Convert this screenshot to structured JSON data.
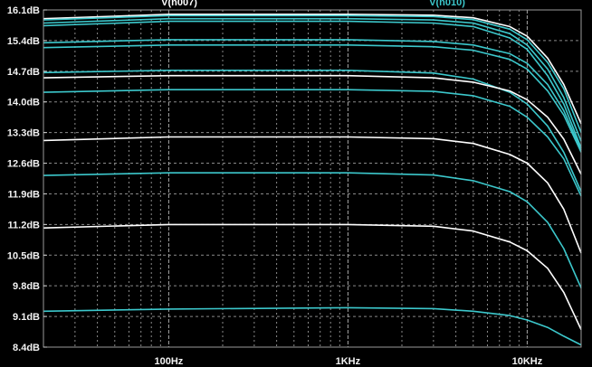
{
  "chart_data": {
    "type": "line",
    "title": "",
    "xlabel": "",
    "ylabel": "",
    "x_scale": "log",
    "xlim": [
      20,
      20000
    ],
    "ylim": [
      8.4,
      16.1
    ],
    "grid": true,
    "legend": [
      "V(n007)",
      "V(n010)"
    ],
    "y_ticks": [
      "16.1dB",
      "15.4dB",
      "14.7dB",
      "14.0dB",
      "13.3dB",
      "12.6dB",
      "11.9dB",
      "11.2dB",
      "10.5dB",
      "9.8dB",
      "9.1dB",
      "8.4dB"
    ],
    "x_ticks": [
      {
        "value": 100,
        "label": "100Hz"
      },
      {
        "value": 1000,
        "label": "1KHz"
      },
      {
        "value": 10000,
        "label": "10KHz"
      }
    ],
    "colors": {
      "background": "#000000",
      "grid": "#8a8a8a",
      "text": "#f2f2f2",
      "white_series": "#ffffff",
      "cyan_series": "#3cc8cc"
    },
    "series": [
      {
        "name": "V(n007)",
        "color": "#ffffff",
        "x": [
          20,
          100,
          1000,
          3000,
          5000,
          8000,
          10000,
          13000,
          16000,
          20000
        ],
        "y": [
          15.9,
          16.0,
          16.0,
          15.98,
          15.92,
          15.72,
          15.5,
          15.0,
          14.4,
          13.5
        ]
      },
      {
        "name": "",
        "color": "#3cc8cc",
        "x": [
          20,
          100,
          1000,
          3000,
          5000,
          8000,
          10000,
          13000,
          16000,
          20000
        ],
        "y": [
          15.87,
          15.97,
          15.97,
          15.95,
          15.88,
          15.66,
          15.42,
          14.9,
          14.3,
          13.3
        ]
      },
      {
        "name": "",
        "color": "#3cc8cc",
        "x": [
          20,
          100,
          1000,
          3000,
          5000,
          8000,
          10000,
          13000,
          16000,
          20000
        ],
        "y": [
          15.8,
          15.9,
          15.9,
          15.87,
          15.8,
          15.56,
          15.3,
          14.75,
          14.1,
          13.1
        ]
      },
      {
        "name": "",
        "color": "#3cc8cc",
        "x": [
          20,
          100,
          1000,
          3000,
          5000,
          8000,
          10000,
          13000,
          16000,
          20000
        ],
        "y": [
          15.74,
          15.84,
          15.84,
          15.8,
          15.72,
          15.46,
          15.2,
          14.6,
          13.95,
          12.95
        ]
      },
      {
        "name": "",
        "color": "#3cc8cc",
        "x": [
          20,
          100,
          1000,
          3000,
          5000,
          8000,
          10000,
          13000,
          16000,
          20000
        ],
        "y": [
          15.35,
          15.42,
          15.42,
          15.38,
          15.3,
          15.1,
          14.88,
          14.4,
          13.8,
          12.9
        ]
      },
      {
        "name": "",
        "color": "#3cc8cc",
        "x": [
          20,
          100,
          1000,
          3000,
          5000,
          8000,
          10000,
          13000,
          16000,
          20000
        ],
        "y": [
          15.24,
          15.3,
          15.3,
          15.26,
          15.18,
          14.97,
          14.75,
          14.25,
          13.7,
          12.85
        ]
      },
      {
        "name": "",
        "color": "#3cc8cc",
        "x": [
          20,
          100,
          1000,
          3000,
          5000,
          8000,
          10000,
          13000,
          16000,
          20000
        ],
        "y": [
          14.67,
          14.72,
          14.72,
          14.66,
          14.52,
          14.22,
          13.95,
          13.45,
          12.85,
          11.95
        ]
      },
      {
        "name": "",
        "color": "#ffffff",
        "x": [
          20,
          100,
          1000,
          3000,
          5000,
          8000,
          10000,
          13000,
          16000,
          20000
        ],
        "y": [
          14.55,
          14.6,
          14.6,
          14.55,
          14.45,
          14.25,
          14.05,
          13.65,
          13.15,
          12.35
        ]
      },
      {
        "name": "",
        "color": "#3cc8cc",
        "x": [
          20,
          100,
          1000,
          3000,
          5000,
          8000,
          10000,
          13000,
          16000,
          20000
        ],
        "y": [
          14.22,
          14.28,
          14.28,
          14.24,
          14.14,
          13.9,
          13.65,
          13.2,
          12.7,
          11.85
        ]
      },
      {
        "name": "",
        "color": "#ffffff",
        "x": [
          20,
          100,
          1000,
          3000,
          5000,
          8000,
          10000,
          13000,
          16000,
          20000
        ],
        "y": [
          13.12,
          13.2,
          13.2,
          13.16,
          13.05,
          12.8,
          12.6,
          12.15,
          11.55,
          10.55
        ]
      },
      {
        "name": "V(n010)",
        "color": "#3cc8cc",
        "x": [
          20,
          100,
          1000,
          3000,
          5000,
          8000,
          10000,
          13000,
          16000,
          20000
        ],
        "y": [
          12.32,
          12.38,
          12.38,
          12.33,
          12.2,
          11.95,
          11.72,
          11.25,
          10.65,
          9.75
        ]
      },
      {
        "name": "",
        "color": "#ffffff",
        "x": [
          20,
          100,
          1000,
          3000,
          5000,
          8000,
          10000,
          13000,
          16000,
          20000
        ],
        "y": [
          11.12,
          11.2,
          11.2,
          11.16,
          11.05,
          10.8,
          10.6,
          10.2,
          9.65,
          8.8
        ]
      },
      {
        "name": "",
        "color": "#3cc8cc",
        "x": [
          20,
          100,
          1000,
          3000,
          5000,
          8000,
          10000,
          13000,
          16000,
          20000
        ],
        "y": [
          9.22,
          9.27,
          9.3,
          9.28,
          9.22,
          9.12,
          9.02,
          8.85,
          8.65,
          8.45
        ]
      }
    ]
  }
}
